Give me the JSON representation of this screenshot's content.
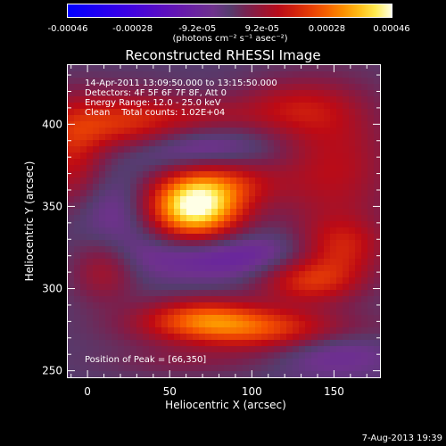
{
  "colorbar": {
    "ticks": [
      "-0.00046",
      "-0.00028",
      "-9.2e-05",
      "9.2e-05",
      "0.00028",
      "0.00046"
    ],
    "units": "(photons cm⁻² s⁻¹ asec⁻²)"
  },
  "chart_data": {
    "type": "heatmap",
    "title": "Reconstructed RHESSI Image",
    "xlabel": "Heliocentric X (arcsec)",
    "ylabel": "Heliocentric Y (arcsec)",
    "xlim": [
      -12,
      178
    ],
    "ylim": [
      246,
      436
    ],
    "x_ticks": [
      0,
      50,
      100,
      150
    ],
    "y_ticks": [
      250,
      300,
      350,
      400
    ],
    "x_tick_labels": [
      "0",
      "50",
      "100",
      "150"
    ],
    "y_tick_labels": [
      "250",
      "300",
      "350",
      "400"
    ],
    "color_range": [
      -0.00046,
      0.00046
    ],
    "peak": [
      66,
      350
    ],
    "blobs": [
      {
        "x": 65,
        "y": 350,
        "sx": 20,
        "sy": 14,
        "v": 0.00048
      },
      {
        "x": 90,
        "y": 365,
        "sx": 22,
        "sy": 10,
        "v": 0.00012
      },
      {
        "x": 105,
        "y": 275,
        "sx": 45,
        "sy": 9,
        "v": 0.00024
      },
      {
        "x": 70,
        "y": 283,
        "sx": 25,
        "sy": 8,
        "v": 0.00018
      },
      {
        "x": 135,
        "y": 305,
        "sx": 22,
        "sy": 10,
        "v": 0.0002
      },
      {
        "x": 155,
        "y": 325,
        "sx": 18,
        "sy": 12,
        "v": 0.00016
      },
      {
        "x": 20,
        "y": 398,
        "sx": 28,
        "sy": 14,
        "v": 0.00022
      },
      {
        "x": -10,
        "y": 380,
        "sx": 14,
        "sy": 22,
        "v": 0.00015
      },
      {
        "x": 150,
        "y": 375,
        "sx": 25,
        "sy": 30,
        "v": 0.00014
      },
      {
        "x": 125,
        "y": 410,
        "sx": 25,
        "sy": 12,
        "v": 0.00012
      },
      {
        "x": 10,
        "y": 312,
        "sx": 14,
        "sy": 14,
        "v": 0.00012
      },
      {
        "x": 70,
        "y": 405,
        "sx": 25,
        "sy": 8,
        "v": 8e-05
      },
      {
        "x": 60,
        "y": 255,
        "sx": 35,
        "sy": 6,
        "v": 5e-05
      },
      {
        "x": 50,
        "y": 385,
        "sx": 40,
        "sy": 10,
        "v": -0.00012
      },
      {
        "x": 85,
        "y": 320,
        "sx": 40,
        "sy": 10,
        "v": -0.00012
      },
      {
        "x": 150,
        "y": 265,
        "sx": 25,
        "sy": 12,
        "v": -0.0001
      },
      {
        "x": 20,
        "y": 345,
        "sx": 20,
        "sy": 18,
        "v": -8e-05
      }
    ],
    "annotations": [
      "14-Apr-2011 13:09:50.000 to 13:15:50.000",
      "Detectors: 4F 5F 6F 7F 8F, Att 0",
      "Energy Range: 12.0 - 25.0 keV",
      "Clean    Total counts: 1.02E+04",
      "Position of Peak = [66,350]"
    ]
  },
  "footer": {
    "date": "7-Aug-2013 19:39"
  }
}
